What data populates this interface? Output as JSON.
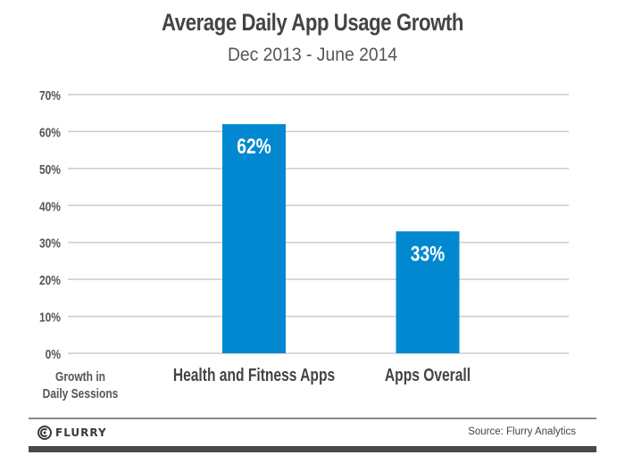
{
  "chart_data": {
    "type": "bar",
    "title": "Average Daily App Usage Growth",
    "subtitle": "Dec 2013 - June 2014",
    "categories": [
      "Health and Fitness Apps",
      "Apps Overall"
    ],
    "values": [
      62,
      33
    ],
    "data_labels": [
      "62%",
      "33%"
    ],
    "xlabel": "",
    "ylabel": "Growth in Daily Sessions",
    "ylabel_lines": [
      "Growth in",
      "Daily Sessions"
    ],
    "ylim": [
      0,
      70
    ],
    "yticks": [
      0,
      10,
      20,
      30,
      40,
      50,
      60,
      70
    ],
    "ytick_labels": [
      "0%",
      "10%",
      "20%",
      "30%",
      "40%",
      "50%",
      "60%",
      "70%"
    ],
    "grid": true,
    "legend": "none",
    "bar_color": "#0288d1",
    "grid_color": "#cccccc"
  },
  "footer": {
    "logo_text": "FLURRY",
    "source": "Source: Flurry Analytics"
  }
}
